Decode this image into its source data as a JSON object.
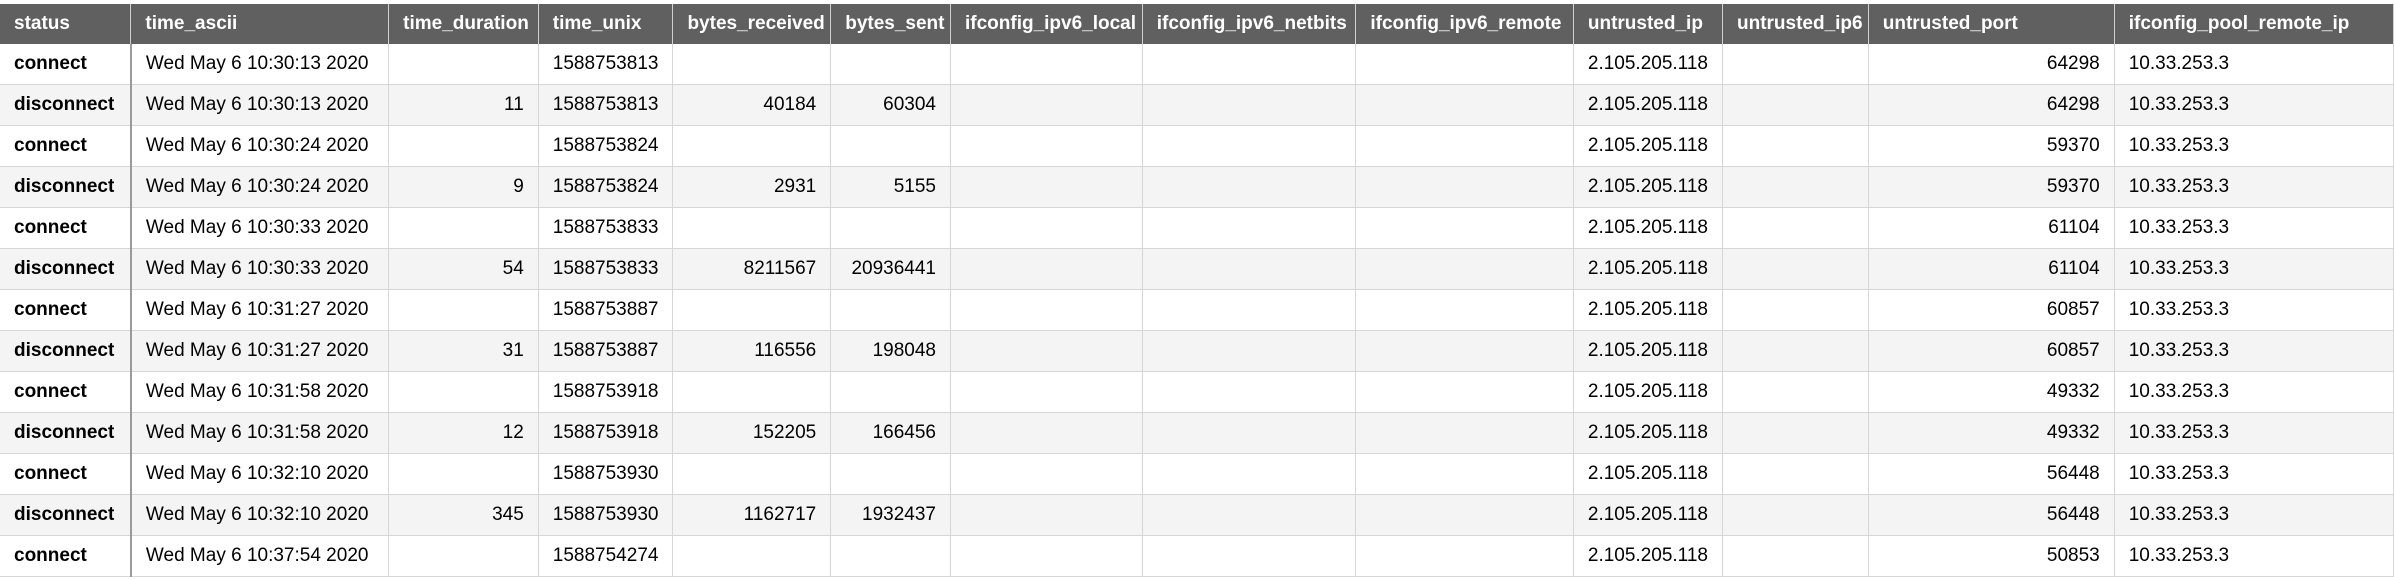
{
  "table": {
    "columns": [
      "status",
      "time_ascii",
      "time_duration",
      "time_unix",
      "bytes_received",
      "bytes_sent",
      "ifconfig_ipv6_local",
      "ifconfig_ipv6_netbits",
      "ifconfig_ipv6_remote",
      "untrusted_ip",
      "untrusted_ip6",
      "untrusted_port",
      "ifconfig_pool_remote_ip"
    ],
    "numeric_columns": [
      "time_duration",
      "bytes_received",
      "bytes_sent",
      "untrusted_port"
    ],
    "rows": [
      {
        "status": "connect",
        "time_ascii": "Wed May  6 10:30:13 2020",
        "time_duration": "",
        "time_unix": "1588753813",
        "bytes_received": "",
        "bytes_sent": "",
        "ifconfig_ipv6_local": "",
        "ifconfig_ipv6_netbits": "",
        "ifconfig_ipv6_remote": "",
        "untrusted_ip": "2.105.205.118",
        "untrusted_ip6": "",
        "untrusted_port": "64298",
        "ifconfig_pool_remote_ip": "10.33.253.3"
      },
      {
        "status": "disconnect",
        "time_ascii": "Wed May  6 10:30:13 2020",
        "time_duration": "11",
        "time_unix": "1588753813",
        "bytes_received": "40184",
        "bytes_sent": "60304",
        "ifconfig_ipv6_local": "",
        "ifconfig_ipv6_netbits": "",
        "ifconfig_ipv6_remote": "",
        "untrusted_ip": "2.105.205.118",
        "untrusted_ip6": "",
        "untrusted_port": "64298",
        "ifconfig_pool_remote_ip": "10.33.253.3"
      },
      {
        "status": "connect",
        "time_ascii": "Wed May  6 10:30:24 2020",
        "time_duration": "",
        "time_unix": "1588753824",
        "bytes_received": "",
        "bytes_sent": "",
        "ifconfig_ipv6_local": "",
        "ifconfig_ipv6_netbits": "",
        "ifconfig_ipv6_remote": "",
        "untrusted_ip": "2.105.205.118",
        "untrusted_ip6": "",
        "untrusted_port": "59370",
        "ifconfig_pool_remote_ip": "10.33.253.3"
      },
      {
        "status": "disconnect",
        "time_ascii": "Wed May  6 10:30:24 2020",
        "time_duration": "9",
        "time_unix": "1588753824",
        "bytes_received": "2931",
        "bytes_sent": "5155",
        "ifconfig_ipv6_local": "",
        "ifconfig_ipv6_netbits": "",
        "ifconfig_ipv6_remote": "",
        "untrusted_ip": "2.105.205.118",
        "untrusted_ip6": "",
        "untrusted_port": "59370",
        "ifconfig_pool_remote_ip": "10.33.253.3"
      },
      {
        "status": "connect",
        "time_ascii": "Wed May  6 10:30:33 2020",
        "time_duration": "",
        "time_unix": "1588753833",
        "bytes_received": "",
        "bytes_sent": "",
        "ifconfig_ipv6_local": "",
        "ifconfig_ipv6_netbits": "",
        "ifconfig_ipv6_remote": "",
        "untrusted_ip": "2.105.205.118",
        "untrusted_ip6": "",
        "untrusted_port": "61104",
        "ifconfig_pool_remote_ip": "10.33.253.3"
      },
      {
        "status": "disconnect",
        "time_ascii": "Wed May  6 10:30:33 2020",
        "time_duration": "54",
        "time_unix": "1588753833",
        "bytes_received": "8211567",
        "bytes_sent": "20936441",
        "ifconfig_ipv6_local": "",
        "ifconfig_ipv6_netbits": "",
        "ifconfig_ipv6_remote": "",
        "untrusted_ip": "2.105.205.118",
        "untrusted_ip6": "",
        "untrusted_port": "61104",
        "ifconfig_pool_remote_ip": "10.33.253.3"
      },
      {
        "status": "connect",
        "time_ascii": "Wed May  6 10:31:27 2020",
        "time_duration": "",
        "time_unix": "1588753887",
        "bytes_received": "",
        "bytes_sent": "",
        "ifconfig_ipv6_local": "",
        "ifconfig_ipv6_netbits": "",
        "ifconfig_ipv6_remote": "",
        "untrusted_ip": "2.105.205.118",
        "untrusted_ip6": "",
        "untrusted_port": "60857",
        "ifconfig_pool_remote_ip": "10.33.253.3"
      },
      {
        "status": "disconnect",
        "time_ascii": "Wed May  6 10:31:27 2020",
        "time_duration": "31",
        "time_unix": "1588753887",
        "bytes_received": "116556",
        "bytes_sent": "198048",
        "ifconfig_ipv6_local": "",
        "ifconfig_ipv6_netbits": "",
        "ifconfig_ipv6_remote": "",
        "untrusted_ip": "2.105.205.118",
        "untrusted_ip6": "",
        "untrusted_port": "60857",
        "ifconfig_pool_remote_ip": "10.33.253.3"
      },
      {
        "status": "connect",
        "time_ascii": "Wed May  6 10:31:58 2020",
        "time_duration": "",
        "time_unix": "1588753918",
        "bytes_received": "",
        "bytes_sent": "",
        "ifconfig_ipv6_local": "",
        "ifconfig_ipv6_netbits": "",
        "ifconfig_ipv6_remote": "",
        "untrusted_ip": "2.105.205.118",
        "untrusted_ip6": "",
        "untrusted_port": "49332",
        "ifconfig_pool_remote_ip": "10.33.253.3"
      },
      {
        "status": "disconnect",
        "time_ascii": "Wed May  6 10:31:58 2020",
        "time_duration": "12",
        "time_unix": "1588753918",
        "bytes_received": "152205",
        "bytes_sent": "166456",
        "ifconfig_ipv6_local": "",
        "ifconfig_ipv6_netbits": "",
        "ifconfig_ipv6_remote": "",
        "untrusted_ip": "2.105.205.118",
        "untrusted_ip6": "",
        "untrusted_port": "49332",
        "ifconfig_pool_remote_ip": "10.33.253.3"
      },
      {
        "status": "connect",
        "time_ascii": "Wed May  6 10:32:10 2020",
        "time_duration": "",
        "time_unix": "1588753930",
        "bytes_received": "",
        "bytes_sent": "",
        "ifconfig_ipv6_local": "",
        "ifconfig_ipv6_netbits": "",
        "ifconfig_ipv6_remote": "",
        "untrusted_ip": "2.105.205.118",
        "untrusted_ip6": "",
        "untrusted_port": "56448",
        "ifconfig_pool_remote_ip": "10.33.253.3"
      },
      {
        "status": "disconnect",
        "time_ascii": "Wed May  6 10:32:10 2020",
        "time_duration": "345",
        "time_unix": "1588753930",
        "bytes_received": "1162717",
        "bytes_sent": "1932437",
        "ifconfig_ipv6_local": "",
        "ifconfig_ipv6_netbits": "",
        "ifconfig_ipv6_remote": "",
        "untrusted_ip": "2.105.205.118",
        "untrusted_ip6": "",
        "untrusted_port": "56448",
        "ifconfig_pool_remote_ip": "10.33.253.3"
      },
      {
        "status": "connect",
        "time_ascii": "Wed May  6 10:37:54 2020",
        "time_duration": "",
        "time_unix": "1588754274",
        "bytes_received": "",
        "bytes_sent": "",
        "ifconfig_ipv6_local": "",
        "ifconfig_ipv6_netbits": "",
        "ifconfig_ipv6_remote": "",
        "untrusted_ip": "2.105.205.118",
        "untrusted_ip6": "",
        "untrusted_port": "50853",
        "ifconfig_pool_remote_ip": "10.33.253.3"
      }
    ]
  },
  "colors": {
    "header_bg": "#606060",
    "header_text": "#ffffff",
    "row_alt_bg": "#f4f4f4",
    "grid_line": "#d6d6d6"
  }
}
